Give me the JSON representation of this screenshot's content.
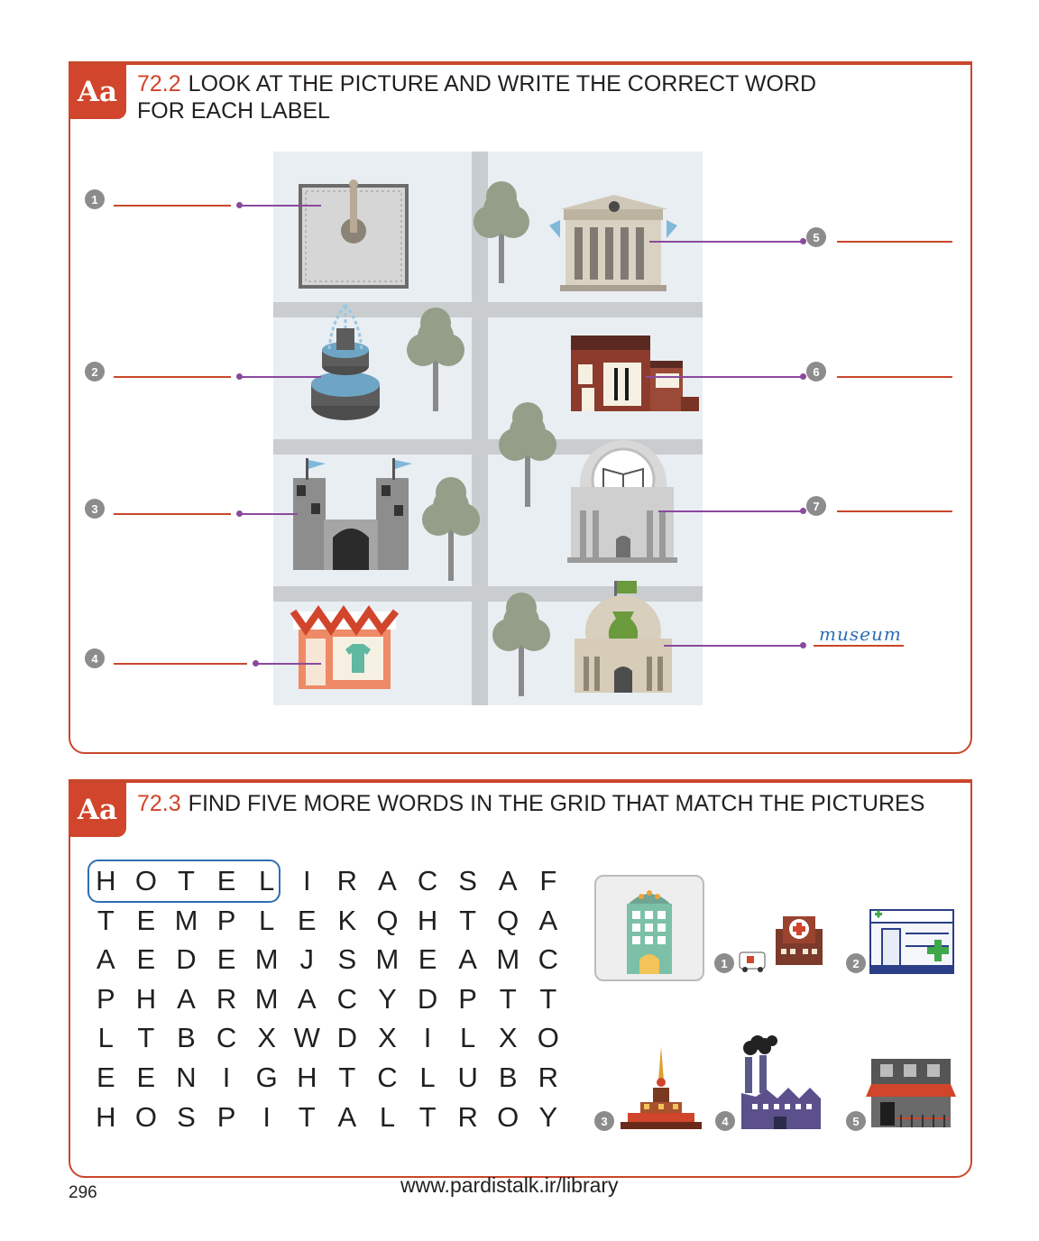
{
  "section1": {
    "badge": "Aa",
    "number": "72.2",
    "title_line1": "LOOK AT THE PICTURE AND WRITE THE CORRECT WORD",
    "title_line2": "FOR EACH LABEL",
    "labels": [
      "1",
      "2",
      "3",
      "4",
      "5",
      "6",
      "7"
    ],
    "example_answer": "museum"
  },
  "section2": {
    "badge": "Aa",
    "number": "72.3",
    "title": "FIND FIVE MORE WORDS IN THE GRID THAT MATCH THE PICTURES",
    "grid": [
      [
        "H",
        "O",
        "T",
        "E",
        "L",
        "I",
        "R",
        "A",
        "C",
        "S",
        "A",
        "F"
      ],
      [
        "T",
        "E",
        "M",
        "P",
        "L",
        "E",
        "K",
        "Q",
        "H",
        "T",
        "Q",
        "A"
      ],
      [
        "A",
        "E",
        "D",
        "E",
        "M",
        "J",
        "S",
        "M",
        "E",
        "A",
        "M",
        "C"
      ],
      [
        "P",
        "H",
        "A",
        "R",
        "M",
        "A",
        "C",
        "Y",
        "D",
        "P",
        "T",
        "T"
      ],
      [
        "L",
        "T",
        "B",
        "C",
        "X",
        "W",
        "D",
        "X",
        "I",
        "L",
        "X",
        "O"
      ],
      [
        "E",
        "E",
        "N",
        "I",
        "G",
        "H",
        "T",
        "C",
        "L",
        "U",
        "B",
        "R"
      ],
      [
        "H",
        "O",
        "S",
        "P",
        "I",
        "T",
        "A",
        "L",
        "T",
        "R",
        "O",
        "Y"
      ]
    ],
    "picture_labels": [
      "1",
      "2",
      "3",
      "4",
      "5"
    ]
  },
  "page_number": "296",
  "footer": "www.pardistalk.ir/library"
}
